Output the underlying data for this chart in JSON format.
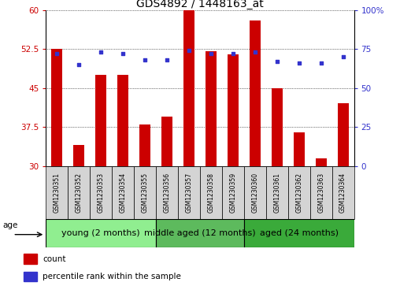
{
  "title": "GDS4892 / 1448163_at",
  "samples": [
    "GSM1230351",
    "GSM1230352",
    "GSM1230353",
    "GSM1230354",
    "GSM1230355",
    "GSM1230356",
    "GSM1230357",
    "GSM1230358",
    "GSM1230359",
    "GSM1230360",
    "GSM1230361",
    "GSM1230362",
    "GSM1230363",
    "GSM1230364"
  ],
  "counts": [
    52.5,
    34.0,
    47.5,
    47.5,
    38.0,
    39.5,
    60.0,
    52.0,
    51.5,
    58.0,
    45.0,
    36.5,
    31.5,
    42.0
  ],
  "percentiles": [
    72,
    65,
    73,
    72,
    68,
    68,
    74,
    72,
    72,
    73,
    67,
    66,
    66,
    70
  ],
  "ymin": 30,
  "ymax": 60,
  "yticks": [
    30,
    37.5,
    45,
    52.5,
    60
  ],
  "right_yticks": [
    0,
    25,
    50,
    75,
    100
  ],
  "groups": [
    {
      "label": "young (2 months)",
      "start": 0,
      "end": 5,
      "color": "#90ee90"
    },
    {
      "label": "middle aged (12 months)",
      "start": 5,
      "end": 9,
      "color": "#5dba5d"
    },
    {
      "label": "aged (24 months)",
      "start": 9,
      "end": 14,
      "color": "#3aaa3a"
    }
  ],
  "bar_color": "#cc0000",
  "dot_color": "#3333cc",
  "bar_width": 0.5,
  "background_color": "#ffffff",
  "plot_bg_color": "#ffffff",
  "title_fontsize": 10,
  "tick_fontsize": 7.5,
  "sample_fontsize": 5.5,
  "group_label_fontsize": 8,
  "legend_fontsize": 7.5,
  "age_label": "age",
  "legend_count_label": "count",
  "legend_percentile_label": "percentile rank within the sample"
}
